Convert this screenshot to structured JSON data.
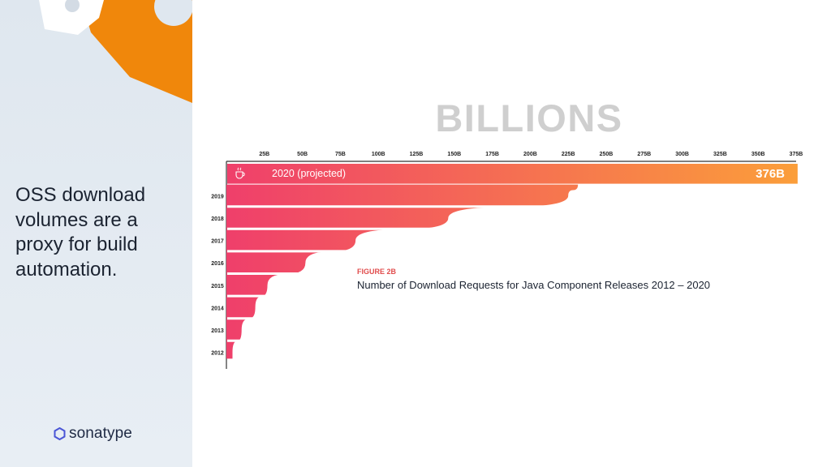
{
  "slide": {
    "tagline": "OSS download volumes are a proxy for build automation.",
    "brand": "sonatype"
  },
  "colors": {
    "orange": "#f0870b",
    "panel": "#e3eaf1",
    "bar_start": "#ef3f6b",
    "bar_end": "#fb9e3a",
    "unit_label": "#cfcfcf",
    "figure_label": "#e14d4d",
    "text": "#1b2331",
    "brand_hex": "#4a55d6"
  },
  "icons": {
    "brand_logo": "hexagon-icon",
    "java_logo": "java-cup-icon"
  },
  "chart_data": {
    "type": "bar",
    "orientation": "horizontal",
    "unit_label": "BILLIONS",
    "figure_label": "FIGURE 2B",
    "title": "Number of Download Requests for Java Component Releases 2012 – 2020",
    "x_ticks": [
      "25B",
      "50B",
      "75B",
      "100B",
      "125B",
      "150B",
      "175B",
      "200B",
      "225B",
      "250B",
      "275B",
      "300B",
      "325B",
      "350B",
      "375B"
    ],
    "xlim": [
      0,
      375
    ],
    "categories": [
      "2012",
      "2013",
      "2014",
      "2015",
      "2016",
      "2017",
      "2018",
      "2019",
      "2020"
    ],
    "values": [
      4,
      10,
      19,
      27,
      52,
      85,
      146,
      225,
      376
    ],
    "highlight": {
      "category_label": "2020 (projected)",
      "value_label": "376B"
    },
    "grid": false,
    "legend": "none"
  }
}
